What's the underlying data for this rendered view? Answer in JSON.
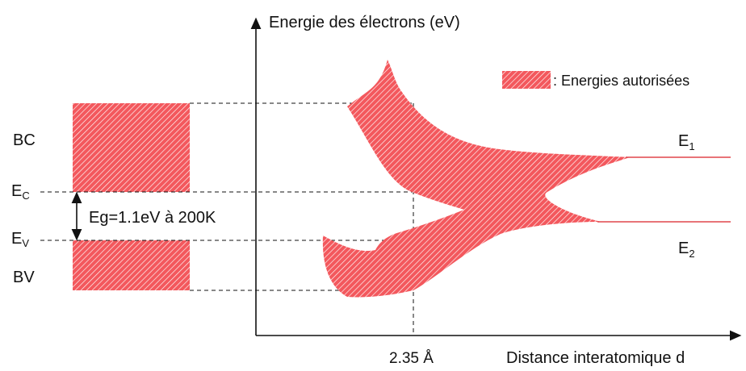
{
  "axes": {
    "y_label": "Energie des électrons (eV)",
    "x_label": "Distance interatomique d",
    "x_tick": "2.35 Å"
  },
  "legend": {
    "text": ": Energies autorisées"
  },
  "bands": {
    "bc": "BC",
    "bv": "BV",
    "ec_main": "E",
    "ec_sub": "C",
    "ev_main": "E",
    "ev_sub": "V",
    "gap": "Eg=1.1eV à 200K"
  },
  "levels": {
    "e1_main": "E",
    "e1_sub": "1",
    "e2_main": "E",
    "e2_sub": "2"
  },
  "colors": {
    "band_fill": "#f3585d",
    "hatch_line": "#ffffff",
    "line": "#111111",
    "level_line": "#e0474c"
  }
}
